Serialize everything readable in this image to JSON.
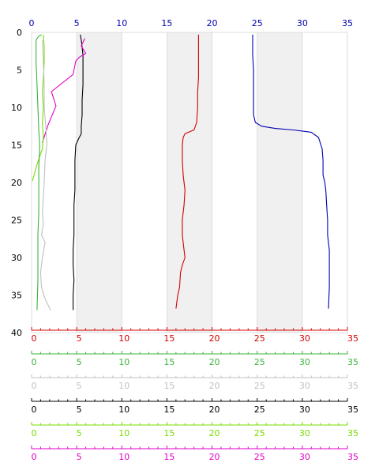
{
  "chart_data": {
    "type": "line",
    "title": "",
    "xlim": [
      0,
      35
    ],
    "ylim": [
      0,
      40
    ],
    "y_inverted": true,
    "grid": false,
    "shaded_bands_x": [
      [
        5,
        10
      ],
      [
        15,
        20
      ],
      [
        25,
        30
      ]
    ],
    "top_axis": {
      "color": "#0000b4",
      "ticks": [
        0,
        5,
        10,
        15,
        20,
        25,
        30,
        35
      ]
    },
    "left_axis": {
      "color": "#000000",
      "ticks": [
        0,
        5,
        10,
        15,
        20,
        25,
        30,
        35,
        40
      ]
    },
    "bottom_axes": [
      {
        "color": "#d40000",
        "ticks": [
          0,
          5,
          10,
          15,
          20,
          25,
          30,
          35
        ]
      },
      {
        "color": "#3cb43c",
        "ticks": [
          0,
          5,
          10,
          15,
          20,
          25,
          30,
          35
        ]
      },
      {
        "color": "#c0c0c0",
        "ticks": [
          0,
          5,
          10,
          15,
          20,
          25,
          30,
          35
        ]
      },
      {
        "color": "#000000",
        "ticks": [
          0,
          5,
          10,
          15,
          20,
          25,
          30,
          35
        ]
      },
      {
        "color": "#78dc00",
        "ticks": [
          0,
          5,
          10,
          15,
          20,
          25,
          30,
          35
        ]
      },
      {
        "color": "#e100c8",
        "ticks": [
          0,
          5,
          10,
          15,
          20,
          25,
          30,
          35
        ]
      }
    ],
    "series": [
      {
        "color": "#0000b4",
        "points": [
          [
            24.5,
            0.3
          ],
          [
            24.5,
            3
          ],
          [
            24.6,
            5
          ],
          [
            24.6,
            8
          ],
          [
            24.6,
            11
          ],
          [
            24.8,
            12
          ],
          [
            25.5,
            12.5
          ],
          [
            27,
            12.8
          ],
          [
            29,
            13
          ],
          [
            31,
            13.3
          ],
          [
            31.8,
            14
          ],
          [
            32.2,
            15.5
          ],
          [
            32.3,
            17
          ],
          [
            32.3,
            19
          ],
          [
            32.5,
            20
          ],
          [
            32.6,
            21
          ],
          [
            32.7,
            23
          ],
          [
            32.8,
            25
          ],
          [
            32.8,
            27
          ],
          [
            33,
            29
          ],
          [
            33,
            32
          ],
          [
            33,
            34
          ],
          [
            32.9,
            36.8
          ]
        ]
      },
      {
        "color": "#d40000",
        "points": [
          [
            18.5,
            0.3
          ],
          [
            18.5,
            3
          ],
          [
            18.5,
            6
          ],
          [
            18.4,
            8
          ],
          [
            18.4,
            10
          ],
          [
            18.3,
            12
          ],
          [
            18,
            13
          ],
          [
            17,
            13.5
          ],
          [
            16.8,
            14
          ],
          [
            16.7,
            15
          ],
          [
            16.7,
            17
          ],
          [
            16.8,
            19
          ],
          [
            16.9,
            20
          ],
          [
            17,
            21
          ],
          [
            16.9,
            23
          ],
          [
            16.7,
            25
          ],
          [
            16.7,
            27
          ],
          [
            16.9,
            29
          ],
          [
            17,
            30
          ],
          [
            16.7,
            31
          ],
          [
            16.5,
            32
          ],
          [
            16.4,
            34
          ],
          [
            16.2,
            35
          ],
          [
            16,
            36.8
          ]
        ]
      },
      {
        "color": "#000000",
        "points": [
          [
            5.4,
            0.3
          ],
          [
            5.5,
            1
          ],
          [
            5.6,
            2
          ],
          [
            5.7,
            3
          ],
          [
            5.7,
            5
          ],
          [
            5.7,
            7
          ],
          [
            5.6,
            9
          ],
          [
            5.6,
            11
          ],
          [
            5.5,
            12.5
          ],
          [
            5.5,
            13.5
          ],
          [
            5.2,
            14.2
          ],
          [
            4.9,
            15
          ],
          [
            4.8,
            17
          ],
          [
            4.8,
            19
          ],
          [
            4.8,
            21
          ],
          [
            4.7,
            23
          ],
          [
            4.7,
            25
          ],
          [
            4.7,
            27
          ],
          [
            4.6,
            29
          ],
          [
            4.6,
            31
          ],
          [
            4.7,
            33
          ],
          [
            4.6,
            35
          ],
          [
            4.6,
            37
          ]
        ]
      },
      {
        "color": "#e100c8",
        "points": [
          [
            5.9,
            0.8
          ],
          [
            5.5,
            1.8
          ],
          [
            6.0,
            2.8
          ],
          [
            5.3,
            3.3
          ],
          [
            4.9,
            3.8
          ],
          [
            4.6,
            5.6
          ],
          [
            2.2,
            7.9
          ],
          [
            2.7,
            9.8
          ],
          [
            1.8,
            12.4
          ],
          [
            1.2,
            14.7
          ]
        ]
      },
      {
        "color": "#78dc00",
        "points": [
          [
            1.3,
            0.3
          ],
          [
            1.4,
            2
          ],
          [
            1.4,
            4
          ],
          [
            1.3,
            6
          ],
          [
            1.2,
            8
          ],
          [
            1.3,
            10
          ],
          [
            1.2,
            12
          ],
          [
            1.3,
            14
          ],
          [
            1.2,
            15.5
          ],
          [
            0.9,
            16.5
          ],
          [
            0.5,
            18
          ],
          [
            0.1,
            19.8
          ]
        ]
      },
      {
        "color": "#3cb43c",
        "points": [
          [
            1.1,
            0.3
          ],
          [
            0.8,
            0.5
          ],
          [
            0.5,
            1
          ],
          [
            0.5,
            4
          ],
          [
            0.6,
            7
          ],
          [
            0.7,
            10
          ],
          [
            0.8,
            13
          ],
          [
            0.9,
            15
          ],
          [
            0.8,
            18
          ],
          [
            0.8,
            21
          ],
          [
            0.8,
            24
          ],
          [
            0.7,
            27
          ],
          [
            0.7,
            30
          ],
          [
            0.7,
            33
          ],
          [
            0.6,
            37
          ]
        ]
      },
      {
        "color": "#c0c0c0",
        "points": [
          [
            1.2,
            1
          ],
          [
            1.3,
            4
          ],
          [
            1.4,
            7
          ],
          [
            1.4,
            10
          ],
          [
            1.6,
            13
          ],
          [
            1.7,
            15
          ],
          [
            1.5,
            17
          ],
          [
            1.4,
            20
          ],
          [
            1.3,
            22
          ],
          [
            1.2,
            24
          ],
          [
            1.3,
            25.5
          ],
          [
            1.1,
            27
          ],
          [
            1.5,
            28
          ],
          [
            1.2,
            30
          ],
          [
            1.0,
            32
          ],
          [
            1.1,
            34
          ],
          [
            1.5,
            35.5
          ],
          [
            2.1,
            37
          ]
        ]
      }
    ]
  }
}
